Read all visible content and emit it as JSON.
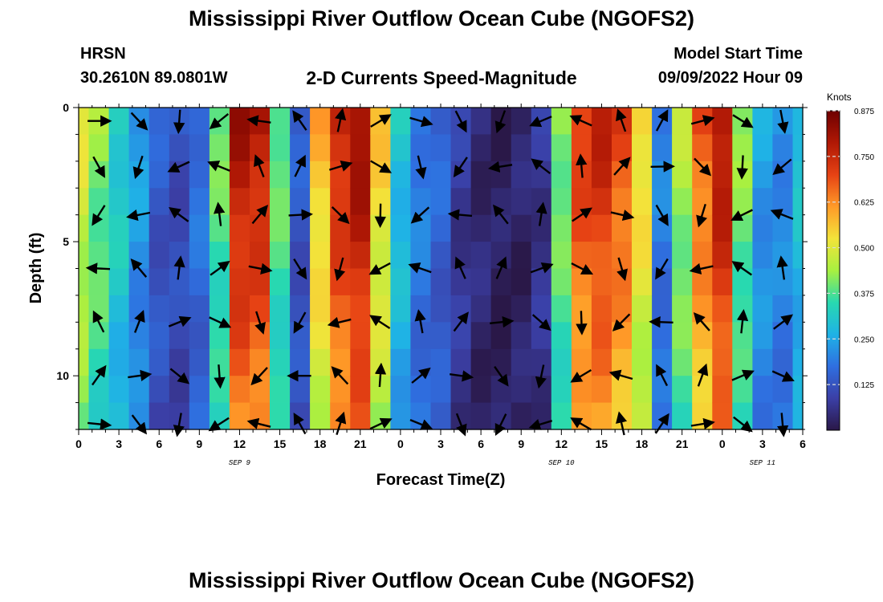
{
  "header": {
    "title": "Mississippi River Outflow Ocean Cube (NGOFS2)",
    "station": "HRSN",
    "coordinates": "30.2610N  89.0801W",
    "subtitle": "2-D Currents Speed-Magnitude",
    "model_start_label": "Model Start Time",
    "model_start_value": "09/09/2022 Hour 09"
  },
  "footer": {
    "next_title": "Mississippi River Outflow Ocean Cube (NGOFS2)"
  },
  "chart_data": {
    "type": "heatmap",
    "xlabel": "Forecast Time(Z)",
    "ylabel": "Depth (ft)",
    "x_ticks": [
      "0",
      "3",
      "6",
      "9",
      "12",
      "15",
      "18",
      "21",
      "0",
      "3",
      "6",
      "9",
      "12",
      "15",
      "18",
      "21",
      "0",
      "3",
      "6"
    ],
    "x_range_hours": [
      0,
      54
    ],
    "date_labels": [
      {
        "label": "SEP 9",
        "hour": 12
      },
      {
        "label": "SEP 10",
        "hour": 36
      },
      {
        "label": "SEP 11",
        "hour": 51
      }
    ],
    "y_ticks": [
      "0",
      "5",
      "10"
    ],
    "y_range_ft": [
      0,
      12
    ],
    "colorbar": {
      "unit": "Knots",
      "min": 0.0,
      "max": 0.875,
      "tick_labels": [
        "0.875",
        "0.750",
        "0.625",
        "0.500",
        "0.375",
        "0.250",
        "0.125"
      ],
      "tick_values": [
        0.875,
        0.75,
        0.625,
        0.5,
        0.375,
        0.25,
        0.125
      ],
      "colors": [
        "#2a1848",
        "#3b3fa6",
        "#2f6fe0",
        "#1fb2e6",
        "#28d9b0",
        "#a8f040",
        "#f3e33a",
        "#ff9a28",
        "#e64214",
        "#b01805",
        "#6e0000"
      ]
    },
    "time_columns_hours": [
      0,
      1.5,
      3,
      4.5,
      6,
      7.5,
      9,
      10.5,
      12,
      13.5,
      15,
      16.5,
      18,
      19.5,
      21,
      22.5,
      24,
      25.5,
      27,
      28.5,
      30,
      31.5,
      33,
      34.5,
      36,
      37.5,
      39,
      40.5,
      42,
      43.5,
      45,
      46.5,
      48,
      49.5,
      51,
      52.5,
      54
    ],
    "speed_profile_knots": [
      0.5,
      0.42,
      0.33,
      0.24,
      0.14,
      0.12,
      0.18,
      0.4,
      0.8,
      0.78,
      0.4,
      0.14,
      0.58,
      0.76,
      0.82,
      0.55,
      0.3,
      0.2,
      0.16,
      0.08,
      0.04,
      0.02,
      0.03,
      0.07,
      0.42,
      0.72,
      0.76,
      0.7,
      0.55,
      0.2,
      0.45,
      0.68,
      0.8,
      0.42,
      0.24,
      0.22,
      0.3
    ]
  }
}
